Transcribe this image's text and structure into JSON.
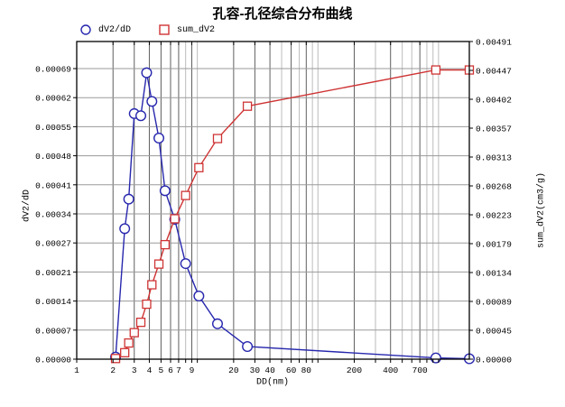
{
  "title": "孔容-孔径综合分布曲线",
  "legend": [
    {
      "label": "dV2/dD",
      "marker": "circle",
      "color": "#2727ae"
    },
    {
      "label": "sum_dV2",
      "marker": "square",
      "color": "#cf3434"
    }
  ],
  "chart_data": {
    "type": "line",
    "title": "孔容-孔径综合分布曲线",
    "xlabel": "DD(nm)",
    "ylabel_left": "dV2/dD",
    "ylabel_right": "sum_dV2(cm3/g)",
    "x_scale": "log",
    "x_range": [
      1,
      1800
    ],
    "grid": true,
    "legend_position": "top-left",
    "x_tick_labels": [
      1,
      2,
      3,
      4,
      5,
      6,
      7,
      9,
      20,
      30,
      40,
      60,
      80,
      200,
      400,
      700
    ],
    "x_minor_gridlines": [
      8,
      10,
      50,
      70,
      90,
      100,
      300,
      500,
      600,
      800,
      900,
      1000
    ],
    "y_left_tick_labels": [
      "0.00000",
      "0.00007",
      "0.00014",
      "0.00021",
      "0.00027",
      "0.00034",
      "0.00041",
      "0.00048",
      "0.00055",
      "0.00062",
      "0.00069"
    ],
    "y_left_max": 0.00069,
    "y_right_tick_labels": [
      "0.00000",
      "0.00045",
      "0.00089",
      "0.00134",
      "0.00179",
      "0.00223",
      "0.00268",
      "0.00313",
      "0.00357",
      "0.00402",
      "0.00447",
      "0.00491"
    ],
    "y_right_max": 0.00491,
    "x": [
      2.1,
      2.5,
      2.7,
      3.0,
      3.4,
      3.8,
      4.2,
      4.8,
      5.4,
      6.5,
      8.0,
      10.3,
      14.7,
      26,
      950,
      1800
    ],
    "series": [
      {
        "name": "dV2/dD",
        "axis": "left",
        "color": "#2727ae",
        "marker": "circle",
        "values": [
          5e-06,
          0.00031,
          0.00038,
          0.000583,
          0.000578,
          0.00068,
          0.000612,
          0.000525,
          0.0004,
          0.000332,
          0.000227,
          0.00015,
          8.4e-05,
          3e-05,
          3e-06,
          1e-06
        ]
      },
      {
        "name": "sum_dV2",
        "axis": "right",
        "color": "#cf3434",
        "marker": "square",
        "values": [
          1e-05,
          0.0001,
          0.00025,
          0.00041,
          0.00057,
          0.00085,
          0.00115,
          0.00147,
          0.00177,
          0.00217,
          0.00253,
          0.00296,
          0.00341,
          0.00391,
          0.00447,
          0.00447
        ]
      }
    ]
  }
}
